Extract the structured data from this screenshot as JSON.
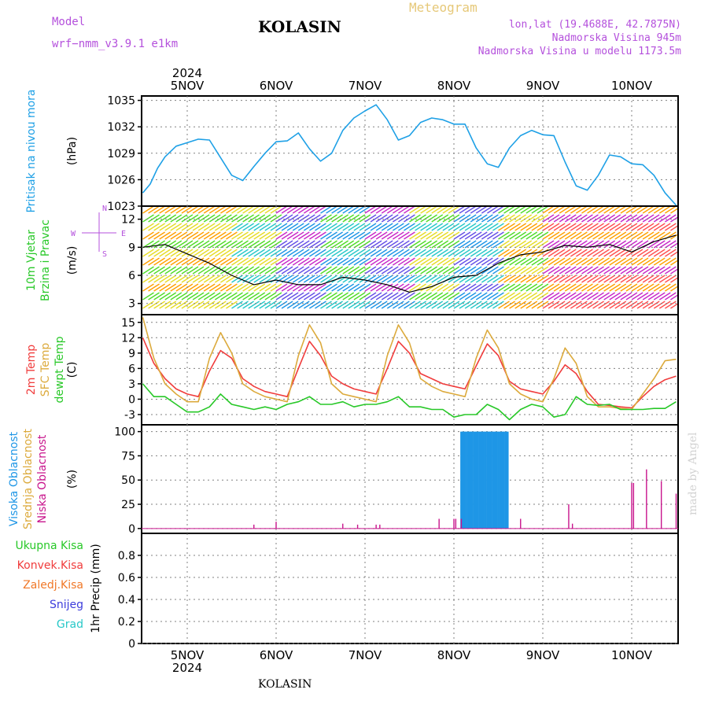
{
  "header": {
    "model_label": "Model",
    "model_name": "wrf−nmm_v3.9.1  e1km",
    "station": "KOLASIN",
    "meteogram_label": "Meteogram",
    "coords": "lon,lat (19.4688E, 42.7875N)",
    "altitude": "Nadmorska Visina 945m",
    "model_altitude": "Nadmorska Visina u modelu 1173.5m",
    "credit": "made by Angel",
    "footer_station": "KOLASIN"
  },
  "colors": {
    "pressure": "#1ea0e6",
    "wind_speed": "#000000",
    "temp2m": "#f03c3c",
    "sfc_temp": "#dcaa3c",
    "dewpt": "#28c828",
    "cloud_high": "#1e96e6",
    "cloud_mid": "#dcaa3c",
    "cloud_low": "#c8148c",
    "grid": "#808080",
    "frame": "#000000"
  },
  "time_axis": {
    "year": "2024",
    "days": [
      "5NOV",
      "6NOV",
      "7NOV",
      "8NOV",
      "9NOV",
      "10NOV"
    ],
    "start_hour": -12,
    "end_hour": 132
  },
  "chart_data": [
    {
      "type": "line",
      "panel": "pressure",
      "ylabel_lines": [
        "Pritisak na nivou mora"
      ],
      "unit": "(hPa)",
      "ylim": [
        1023,
        1035.5
      ],
      "yticks": [
        1023,
        1026,
        1029,
        1032,
        1035
      ],
      "grid": true,
      "series": [
        {
          "x": [
            -12,
            -10,
            -8,
            -6,
            -3,
            0,
            3,
            6,
            9,
            12,
            15,
            18,
            21,
            24,
            27,
            30,
            33,
            36,
            39,
            42,
            45,
            48,
            51,
            54,
            57,
            60,
            63,
            66,
            69,
            72,
            75,
            78,
            81,
            84,
            87,
            90,
            93,
            96,
            99,
            102,
            105,
            108,
            111,
            114,
            117,
            120,
            123,
            126,
            129,
            132
          ],
          "values": [
            1024.5,
            1025.5,
            1027.3,
            1028.6,
            1029.8,
            1030.2,
            1030.6,
            1030.5,
            1028.5,
            1026.5,
            1025.9,
            1027.5,
            1029.0,
            1030.3,
            1030.4,
            1031.3,
            1029.5,
            1028.1,
            1029.0,
            1031.6,
            1033.0,
            1033.8,
            1034.5,
            1032.8,
            1030.5,
            1031.0,
            1032.5,
            1033.0,
            1032.8,
            1032.3,
            1032.3,
            1029.6,
            1027.8,
            1027.4,
            1029.6,
            1031.0,
            1031.6,
            1031.1,
            1031.0,
            1028.0,
            1025.3,
            1024.8,
            1026.5,
            1028.8,
            1028.6,
            1027.8,
            1027.7,
            1026.5,
            1024.5,
            1023.1
          ]
        }
      ]
    },
    {
      "type": "line",
      "panel": "wind",
      "ylabel_lines": [
        "10m Vjetar",
        "Brzina i Pravac"
      ],
      "unit": "(m/s)",
      "ylim": [
        1.8,
        13.4
      ],
      "yticks": [
        3,
        6,
        9,
        12
      ],
      "grid": true,
      "compass": [
        "W",
        "E",
        "N",
        "S"
      ],
      "series": [
        {
          "name": "brzina",
          "x": [
            -12,
            -6,
            0,
            6,
            12,
            18,
            24,
            30,
            36,
            42,
            48,
            54,
            60,
            66,
            72,
            78,
            84,
            90,
            96,
            102,
            108,
            114,
            120,
            126,
            132
          ],
          "values": [
            9.0,
            9.3,
            8.3,
            7.3,
            6.0,
            5.0,
            5.5,
            5.0,
            5.0,
            5.8,
            5.5,
            5.0,
            4.2,
            4.8,
            5.8,
            6.0,
            7.3,
            8.2,
            8.5,
            9.2,
            9.0,
            9.3,
            8.5,
            9.6,
            10.3
          ]
        }
      ]
    },
    {
      "type": "line",
      "panel": "temperature",
      "ylabel_lines": [
        "2m Temp",
        "SFC Temp",
        "dewpt Temp"
      ],
      "unit": "(C)",
      "ylim": [
        -5,
        16.5
      ],
      "yticks": [
        -3,
        0,
        3,
        6,
        9,
        12,
        15
      ],
      "grid": true,
      "series": [
        {
          "name": "2m Temp",
          "x": [
            -12,
            -9,
            -6,
            -3,
            0,
            3,
            6,
            9,
            12,
            15,
            18,
            21,
            24,
            27,
            30,
            33,
            36,
            39,
            42,
            45,
            48,
            51,
            54,
            57,
            60,
            63,
            66,
            69,
            72,
            75,
            78,
            81,
            84,
            87,
            90,
            93,
            96,
            99,
            102,
            105,
            108,
            111,
            114,
            117,
            120,
            123,
            126,
            129,
            132
          ],
          "values": [
            12.0,
            7.0,
            4.0,
            2.0,
            1.0,
            0.5,
            5.5,
            9.5,
            8.0,
            4.0,
            2.5,
            1.5,
            1.0,
            0.5,
            6.0,
            11.3,
            8.5,
            4.5,
            3.0,
            2.0,
            1.5,
            1.0,
            6.0,
            11.3,
            9.0,
            5.0,
            4.0,
            3.0,
            2.5,
            2.0,
            6.5,
            10.8,
            8.5,
            3.5,
            2.0,
            1.5,
            1.0,
            3.5,
            6.7,
            5.0,
            1.5,
            -1.0,
            -1.2,
            -1.5,
            -1.7,
            0.5,
            2.5,
            3.8,
            4.5
          ]
        },
        {
          "name": "SFC Temp",
          "x": [
            -12,
            -9,
            -6,
            -3,
            0,
            3,
            6,
            9,
            12,
            15,
            18,
            21,
            24,
            27,
            30,
            33,
            36,
            39,
            42,
            45,
            48,
            51,
            54,
            57,
            60,
            63,
            66,
            69,
            72,
            75,
            78,
            81,
            84,
            87,
            90,
            93,
            96,
            99,
            102,
            105,
            108,
            111,
            114,
            117,
            120,
            123,
            126,
            129,
            132
          ],
          "values": [
            16.0,
            8.0,
            3.0,
            1.0,
            -0.5,
            -0.5,
            8.0,
            13.0,
            9.0,
            3.0,
            1.5,
            0.5,
            0.0,
            -0.5,
            8.5,
            14.5,
            11.0,
            3.0,
            1.0,
            0.5,
            0.0,
            -0.5,
            8.5,
            14.5,
            11.0,
            4.0,
            2.5,
            1.5,
            1.0,
            0.5,
            8.0,
            13.5,
            10.0,
            3.0,
            1.0,
            0.0,
            -0.5,
            4.0,
            10.0,
            7.0,
            0.5,
            -1.5,
            -1.5,
            -1.8,
            -2.0,
            1.0,
            4.0,
            7.5,
            7.8
          ]
        },
        {
          "name": "dewpt Temp",
          "x": [
            -12,
            -9,
            -6,
            -3,
            0,
            3,
            6,
            9,
            12,
            15,
            18,
            21,
            24,
            27,
            30,
            33,
            36,
            39,
            42,
            45,
            48,
            51,
            54,
            57,
            60,
            63,
            66,
            69,
            72,
            75,
            78,
            81,
            84,
            87,
            90,
            93,
            96,
            99,
            102,
            105,
            108,
            111,
            114,
            117,
            120,
            123,
            126,
            129,
            132
          ],
          "values": [
            3.0,
            0.5,
            0.5,
            -1.0,
            -2.5,
            -2.5,
            -1.5,
            1.0,
            -1.0,
            -1.5,
            -2.0,
            -1.5,
            -2.0,
            -1.0,
            -0.5,
            0.5,
            -1.0,
            -1.0,
            -0.5,
            -1.5,
            -1.0,
            -1.0,
            -0.5,
            0.5,
            -1.5,
            -1.5,
            -2.0,
            -2.0,
            -3.5,
            -3.0,
            -3.0,
            -1.0,
            -2.0,
            -4.0,
            -2.0,
            -1.0,
            -1.5,
            -3.5,
            -3.0,
            0.5,
            -1.0,
            -1.2,
            -1.0,
            -2.0,
            -2.0,
            -2.0,
            -1.8,
            -1.8,
            -0.5
          ]
        }
      ]
    },
    {
      "type": "bar",
      "panel": "clouds",
      "ylabel_lines": [
        "Visoka Oblacnost",
        "Srednja Oblacnost",
        "Niska Oblacnost"
      ],
      "unit": "(%)",
      "ylim": [
        -5,
        107
      ],
      "yticks": [
        0,
        25,
        50,
        75,
        100
      ],
      "grid": true,
      "series": [
        {
          "name": "Visoka Oblacnost",
          "x": [
            74,
            74.5,
            75,
            75.5,
            76,
            76.5,
            77,
            77.5,
            78,
            78.5,
            79,
            79.5,
            80,
            80.5,
            81,
            81.5,
            82,
            82.5,
            83,
            83.5,
            84,
            84.5,
            85,
            85.5,
            86,
            86.5
          ],
          "values": [
            100,
            100,
            100,
            100,
            100,
            100,
            100,
            100,
            100,
            100,
            100,
            100,
            100,
            100,
            100,
            100,
            100,
            100,
            100,
            100,
            100,
            100,
            100,
            100,
            100,
            100
          ]
        },
        {
          "name": "Niska Oblacnost",
          "x": [
            18,
            24,
            42,
            46,
            51,
            52,
            68,
            72,
            72.5,
            74,
            90,
            103,
            104,
            120,
            120.5,
            124,
            128,
            132
          ],
          "values": [
            4,
            7,
            5,
            4,
            4,
            4,
            10,
            10,
            10,
            10,
            10,
            25,
            5,
            47,
            47,
            61,
            49,
            36
          ]
        }
      ]
    },
    {
      "type": "bar",
      "panel": "precipitation",
      "ylabel_lines": [
        "1hr Precip (mm)"
      ],
      "legend": [
        "Ukupna Kisa",
        "Konvek.Kisa",
        "Zaledj.Kisa",
        "Snijeg",
        "Grad"
      ],
      "legend_colors": [
        "#28c828",
        "#f03c3c",
        "#f07828",
        "#3c3cdc",
        "#28c8c8"
      ],
      "ylim": [
        0,
        1
      ],
      "yticks": [
        0,
        0.2,
        0.4,
        0.6,
        0.8
      ],
      "grid": true,
      "series": []
    }
  ]
}
